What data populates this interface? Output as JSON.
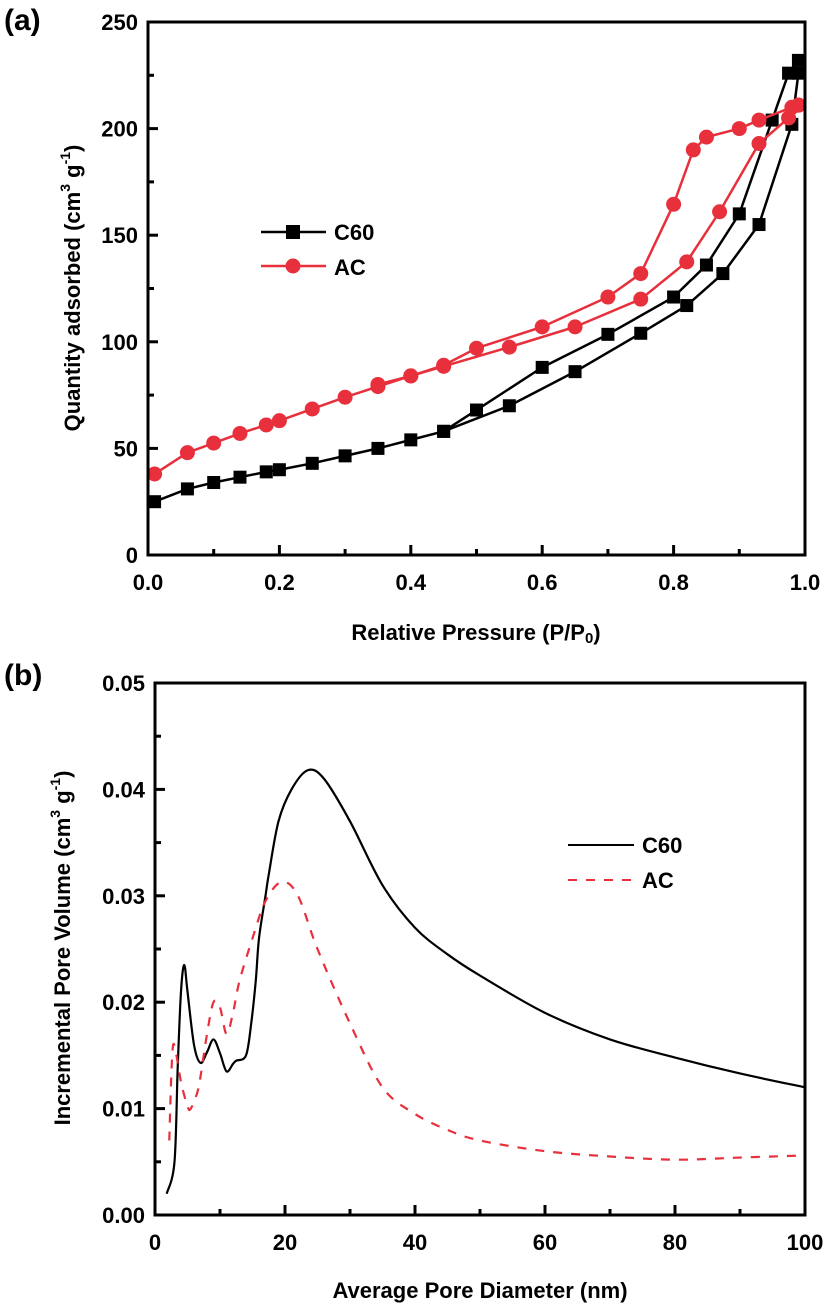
{
  "chart_data": [
    {
      "panel": "(a)",
      "type": "line",
      "markers": true,
      "title": "",
      "xlabel": "Relative Pressure (P/P0)",
      "ylabel": "Quantity adsorbed (cm3 g-1)",
      "ylabel_parts": {
        "main": "Quantity adsorbed (cm",
        "sup1": "3",
        "mid": " g",
        "sup2": "-1",
        "end": ")"
      },
      "xlabel_parts": {
        "main": "Relative Pressure (P/P",
        "sub": "0",
        "end": ")"
      },
      "xlim": [
        0,
        1.0
      ],
      "ylim": [
        0,
        250
      ],
      "xticks": [
        "0.0",
        "0.2",
        "0.4",
        "0.6",
        "0.8",
        "1.0"
      ],
      "xtick_values": [
        0,
        0.2,
        0.4,
        0.6,
        0.8,
        1.0
      ],
      "xminor": [
        0.1,
        0.3,
        0.5,
        0.7,
        0.9
      ],
      "yticks": [
        "0",
        "50",
        "100",
        "150",
        "200",
        "250"
      ],
      "ytick_values": [
        0,
        50,
        100,
        150,
        200,
        250
      ],
      "yminor": [
        25,
        75,
        125,
        175,
        225
      ],
      "grid": false,
      "legend_position": "center-left",
      "series": [
        {
          "name": "C60",
          "color": "#000000",
          "marker": "square",
          "branches": [
            {
              "label": "adsorption",
              "x": [
                0.01,
                0.06,
                0.1,
                0.14,
                0.18,
                0.2,
                0.25,
                0.3,
                0.35,
                0.4,
                0.45,
                0.55,
                0.65,
                0.75,
                0.82,
                0.875,
                0.93,
                0.98,
                0.99
              ],
              "y": [
                25,
                31,
                34,
                36.5,
                39,
                40,
                43,
                46.5,
                50,
                54,
                58,
                70,
                86,
                104,
                117,
                132,
                155,
                202,
                226
              ]
            },
            {
              "label": "desorption",
              "x": [
                0.99,
                0.975,
                0.95,
                0.9,
                0.85,
                0.8,
                0.7,
                0.6,
                0.5,
                0.45
              ],
              "y": [
                232,
                226,
                204,
                160,
                136,
                121,
                103.5,
                88,
                68,
                58
              ]
            }
          ]
        },
        {
          "name": "AC",
          "color": "#e8303c",
          "marker": "circle",
          "branches": [
            {
              "label": "adsorption",
              "x": [
                0.01,
                0.06,
                0.1,
                0.14,
                0.18,
                0.2,
                0.25,
                0.3,
                0.35,
                0.4,
                0.45,
                0.55,
                0.65,
                0.75,
                0.82,
                0.87,
                0.93,
                0.975,
                0.99
              ],
              "y": [
                38,
                48,
                52.5,
                57,
                61,
                63,
                68.5,
                74,
                79,
                84,
                88.5,
                97.5,
                107,
                120,
                137.5,
                161,
                193,
                205,
                211
              ]
            },
            {
              "label": "desorption",
              "x": [
                0.99,
                0.98,
                0.93,
                0.9,
                0.85,
                0.83,
                0.8,
                0.75,
                0.7,
                0.6,
                0.5,
                0.45,
                0.4,
                0.35
              ],
              "y": [
                211,
                210,
                204,
                200,
                196,
                190,
                164.5,
                132,
                121,
                107,
                97,
                89,
                84,
                80
              ]
            }
          ]
        }
      ]
    },
    {
      "panel": "(b)",
      "type": "line",
      "markers": false,
      "title": "",
      "xlabel": "Average Pore Diameter (nm)",
      "ylabel": "Incremental Pore Volume (cm3 g-1)",
      "ylabel_parts": {
        "main": "Incremental Pore Volume (cm",
        "sup1": "3",
        "mid": " g",
        "sup2": "-1",
        "end": ")"
      },
      "xlim": [
        0,
        100
      ],
      "ylim": [
        0,
        0.05
      ],
      "xticks": [
        "0",
        "20",
        "40",
        "60",
        "80",
        "100"
      ],
      "xtick_values": [
        0,
        20,
        40,
        60,
        80,
        100
      ],
      "xminor": [
        10,
        30,
        50,
        70,
        90
      ],
      "yticks": [
        "0.00",
        "0.01",
        "0.02",
        "0.03",
        "0.04",
        "0.05"
      ],
      "ytick_values": [
        0,
        0.01,
        0.02,
        0.03,
        0.04,
        0.05
      ],
      "yminor": [
        0.005,
        0.015,
        0.025,
        0.035,
        0.045
      ],
      "grid": false,
      "legend_position": "center-right",
      "series": [
        {
          "name": "C60",
          "color": "#000000",
          "style": "solid",
          "x": [
            1.8,
            3,
            3.5,
            4,
            4.5,
            5,
            6,
            7,
            8,
            9,
            10,
            11,
            12,
            12.5,
            14,
            14.8,
            15.5,
            16,
            17,
            17.5,
            19,
            21,
            23.5,
            26,
            30,
            35,
            40,
            45,
            50,
            60,
            70,
            80,
            90,
            100
          ],
          "y": [
            0.002,
            0.005,
            0.014,
            0.021,
            0.0235,
            0.021,
            0.016,
            0.0143,
            0.0153,
            0.0165,
            0.0152,
            0.0135,
            0.0142,
            0.0145,
            0.015,
            0.018,
            0.022,
            0.026,
            0.03,
            0.032,
            0.037,
            0.04,
            0.0418,
            0.041,
            0.037,
            0.031,
            0.027,
            0.0245,
            0.0225,
            0.019,
            0.0165,
            0.0148,
            0.0133,
            0.012
          ]
        },
        {
          "name": "AC",
          "color": "#e8303c",
          "style": "dashed",
          "x": [
            2.2,
            2.5,
            2.8,
            3.3,
            4,
            5,
            5.5,
            6.5,
            7,
            8,
            9,
            10,
            11,
            12,
            13,
            15,
            17,
            19.5,
            22,
            25,
            30,
            35,
            40,
            45,
            50,
            60,
            70,
            80,
            90,
            100
          ],
          "y": [
            0.007,
            0.013,
            0.016,
            0.015,
            0.0125,
            0.0102,
            0.01,
            0.0115,
            0.013,
            0.017,
            0.02,
            0.0195,
            0.017,
            0.019,
            0.022,
            0.026,
            0.0295,
            0.0313,
            0.03,
            0.025,
            0.018,
            0.012,
            0.0095,
            0.008,
            0.007,
            0.006,
            0.0055,
            0.0052,
            0.0054,
            0.0056
          ]
        }
      ]
    }
  ]
}
